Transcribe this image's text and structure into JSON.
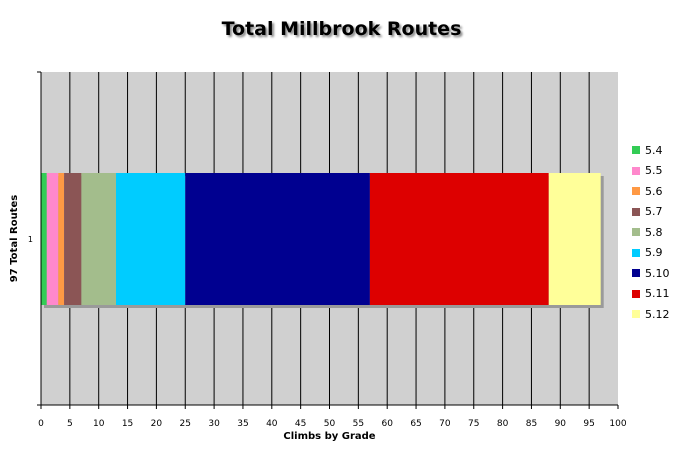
{
  "chart_data": {
    "type": "bar",
    "orientation": "horizontal",
    "stacked": true,
    "title": "Total Millbrook Routes",
    "xlabel": "Climbs by Grade",
    "ylabel": "97 Total Routes",
    "categories": [
      "1"
    ],
    "xlim": [
      0,
      100
    ],
    "x_ticks": [
      "0",
      "5",
      "10",
      "15",
      "20",
      "25",
      "30",
      "35",
      "40",
      "45",
      "50",
      "55",
      "60",
      "65",
      "70",
      "75",
      "80",
      "85",
      "90",
      "95",
      "100"
    ],
    "grid": true,
    "legend_position": "right",
    "series": [
      {
        "name": "5.4",
        "values": [
          1
        ],
        "color": "#33cc55"
      },
      {
        "name": "5.5",
        "values": [
          2
        ],
        "color": "#ff88cc"
      },
      {
        "name": "5.6",
        "values": [
          1
        ],
        "color": "#ff9944"
      },
      {
        "name": "5.7",
        "values": [
          3
        ],
        "color": "#8b5555"
      },
      {
        "name": "5.8",
        "values": [
          6
        ],
        "color": "#a3bd8c"
      },
      {
        "name": "5.9",
        "values": [
          12
        ],
        "color": "#00ccff"
      },
      {
        "name": "5.10",
        "values": [
          32
        ],
        "color": "#000090"
      },
      {
        "name": "5.11",
        "values": [
          31
        ],
        "color": "#dd0000"
      },
      {
        "name": "5.12",
        "values": [
          9
        ],
        "color": "#ffff99"
      }
    ],
    "colors": {
      "plot_background": "#d0d0d0",
      "gridline": "#000000",
      "frame": "#808080"
    }
  }
}
